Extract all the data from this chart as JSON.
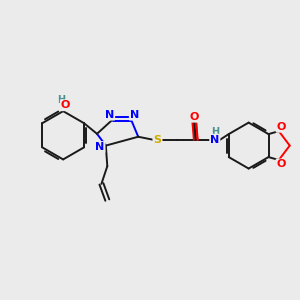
{
  "bg_color": "#ebebeb",
  "atom_colors": {
    "C": "#1a1a1a",
    "N": "#0000ff",
    "O": "#ff0000",
    "S": "#ccaa00",
    "H": "#4a9090"
  },
  "lw": 1.4,
  "fs": 8.0,
  "fs_small": 7.0
}
